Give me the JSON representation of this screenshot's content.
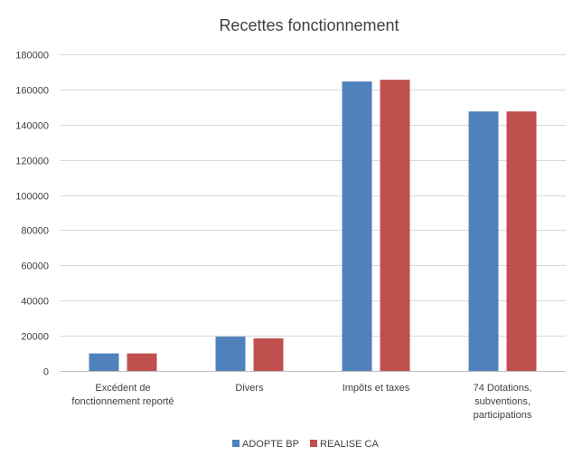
{
  "chart_data": {
    "type": "bar",
    "title": "Recettes fonctionnement",
    "xlabel": "",
    "ylabel": "",
    "ylim": [
      0,
      180000
    ],
    "yticks": [
      0,
      20000,
      40000,
      60000,
      80000,
      100000,
      120000,
      140000,
      160000,
      180000
    ],
    "grid": true,
    "legend_position": "bottom",
    "categories": [
      [
        "Excédent de",
        "fonctionnement reporté"
      ],
      [
        "Divers"
      ],
      [
        "Impôts et taxes"
      ],
      [
        "74 Dotations,",
        "subventions,",
        "participations"
      ]
    ],
    "series": [
      {
        "name": "ADOPTE BP",
        "color": "#4f81bd",
        "values": [
          10000,
          19500,
          164500,
          147500
        ]
      },
      {
        "name": "REALISE CA",
        "color": "#c0504d",
        "values": [
          10000,
          18500,
          165500,
          147500
        ]
      }
    ]
  }
}
